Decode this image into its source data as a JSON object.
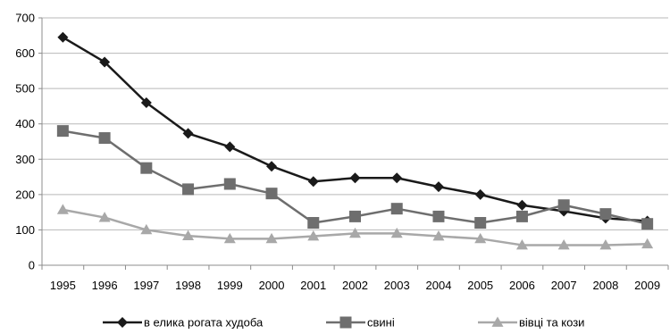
{
  "chart_data": {
    "type": "line",
    "title": "",
    "xlabel": "",
    "ylabel": "",
    "ylim": [
      0,
      700
    ],
    "yticks": [
      0,
      100,
      200,
      300,
      400,
      500,
      600,
      700
    ],
    "grid": "horizontal",
    "legend_position": "bottom",
    "categories": [
      "1995",
      "1996",
      "1997",
      "1998",
      "1999",
      "2000",
      "2001",
      "2002",
      "2003",
      "2004",
      "2005",
      "2006",
      "2007",
      "2008",
      "2009"
    ],
    "series": [
      {
        "name": "в елика рогата худоба",
        "marker": "diamond",
        "color": "#1a1a1a",
        "values": [
          645,
          575,
          460,
          373,
          335,
          280,
          237,
          247,
          247,
          222,
          200,
          170,
          153,
          133,
          125
        ]
      },
      {
        "name": "свині",
        "marker": "square",
        "color": "#6e6e6e",
        "values": [
          380,
          360,
          275,
          215,
          230,
          203,
          120,
          138,
          160,
          138,
          120,
          138,
          170,
          145,
          117
        ]
      },
      {
        "name": "вівці та кози",
        "marker": "triangle",
        "color": "#a8a8a8",
        "values": [
          157,
          135,
          100,
          83,
          75,
          75,
          82,
          90,
          90,
          82,
          75,
          57,
          57,
          57,
          60
        ]
      }
    ]
  }
}
